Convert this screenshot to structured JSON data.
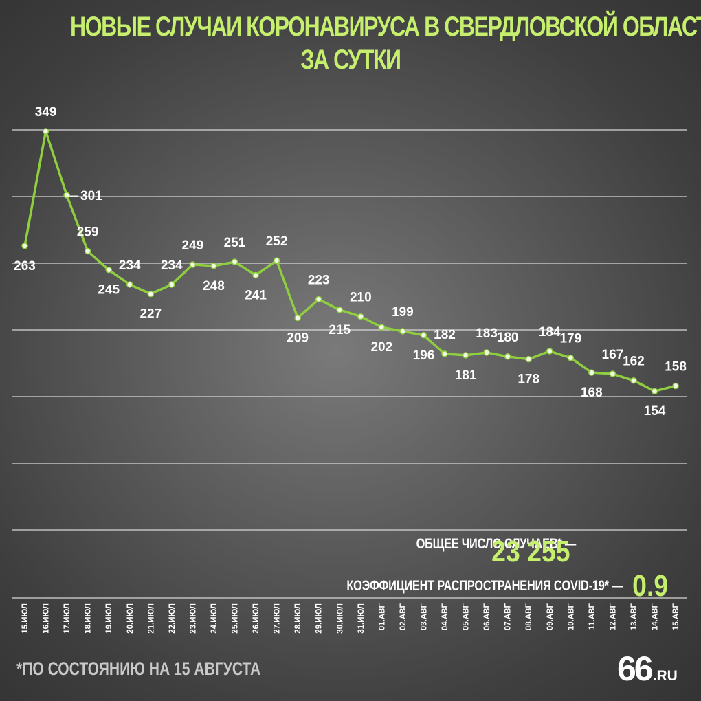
{
  "title_line1": "НОВЫЕ СЛУЧАИ КОРОНАВИРУСА В СВЕРДЛОВСКОЙ ОБЛАСТИ",
  "title_line2": "ЗА СУТКИ",
  "total_label": "ОБЩЕЕ ЧИСЛО СЛУЧАЕВ* —",
  "total_value": "23 255",
  "rate_label": "КОЭФФИЦИЕНТ РАСПРОСТРАНЕНИЯ COVID-19* —",
  "rate_value": "0.9",
  "footnote": "*ПО СОСТОЯНИЮ НА 15 АВГУСТА",
  "logo_main": "66",
  "logo_suffix": ".RU",
  "colors": {
    "accent": "#c6ef6e",
    "line": "#8fce3f",
    "grid": "#d8d8d8",
    "text": "#ffffff"
  },
  "chart_data": {
    "type": "line",
    "title": "НОВЫЕ СЛУЧАИ КОРОНАВИРУСА В СВЕРДЛОВСКОЙ ОБЛАСТИ ЗА СУТКИ",
    "categories": [
      "15.ИЮЛ",
      "16.ИЮЛ",
      "17.ИЮЛ",
      "18.ИЮЛ",
      "19.ИЮЛ",
      "20.ИЮЛ",
      "21.ИЮЛ",
      "22.ИЮЛ",
      "23.ИЮЛ",
      "24.ИЮЛ",
      "25.ИЮЛ",
      "26.ИЮЛ",
      "27.ИЮЛ",
      "28.ИЮЛ",
      "29.ИЮЛ",
      "30.ИЮЛ",
      "31.ИЮЛ",
      "01.АВГ",
      "02.АВГ",
      "03.АВГ",
      "04.АВГ",
      "05.АВГ",
      "06.АВГ",
      "07.АВГ",
      "08.АВГ",
      "09.АВГ",
      "10.АВГ",
      "11.АВГ",
      "12.АВГ",
      "13.АВГ",
      "14.АВГ",
      "15.АВГ"
    ],
    "values": [
      263,
      349,
      301,
      259,
      245,
      234,
      227,
      234,
      249,
      248,
      251,
      241,
      252,
      209,
      223,
      215,
      210,
      202,
      199,
      196,
      182,
      181,
      183,
      180,
      178,
      184,
      179,
      168,
      167,
      162,
      154,
      158
    ],
    "ylim": [
      50,
      350
    ],
    "grid": true,
    "gridlines": [
      350,
      300,
      250,
      200,
      150,
      100,
      50
    ]
  }
}
